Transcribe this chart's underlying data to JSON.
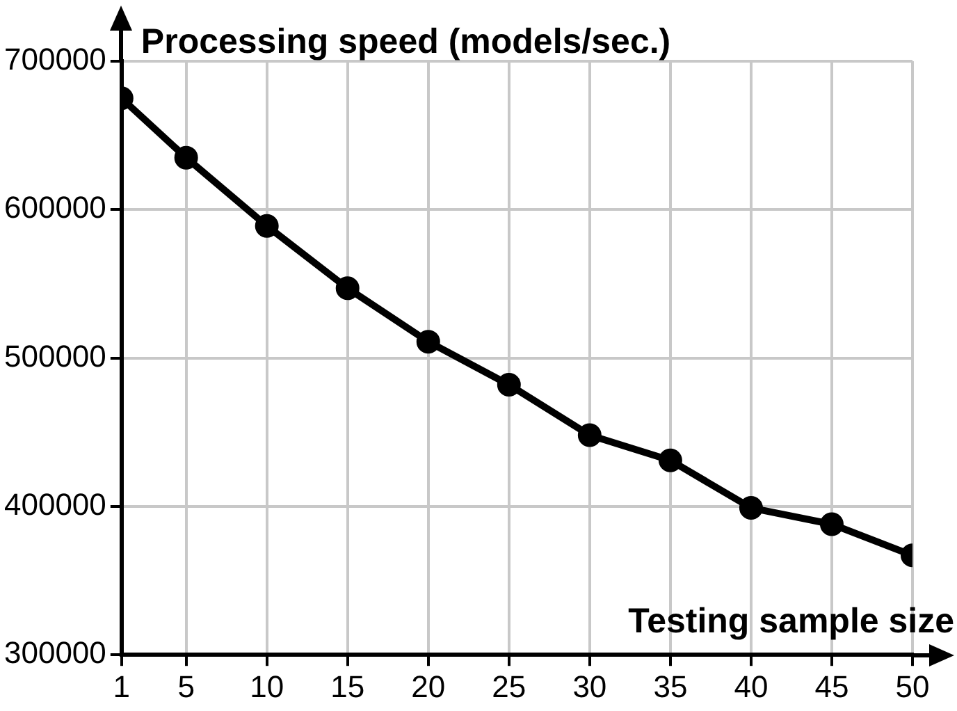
{
  "chart_data": {
    "type": "line",
    "ylabel": "Processing speed (models/sec.)",
    "xlabel": "Testing sample size",
    "x": [
      1,
      5,
      10,
      15,
      20,
      25,
      30,
      35,
      40,
      45,
      50
    ],
    "series": [
      {
        "color": "#000000",
        "values": [
          675000,
          635000,
          589000,
          547000,
          511000,
          482000,
          448000,
          431000,
          399000,
          388000,
          367000
        ]
      }
    ],
    "xlim": [
      1,
      50
    ],
    "xticks": [
      1,
      5,
      10,
      15,
      20,
      25,
      30,
      35,
      40,
      45,
      50
    ],
    "ylim": [
      300000,
      700000
    ],
    "yticks": [
      300000,
      400000,
      500000,
      600000,
      700000
    ],
    "grid": true,
    "legend": false,
    "marker": "circle",
    "line_style": "solid"
  }
}
